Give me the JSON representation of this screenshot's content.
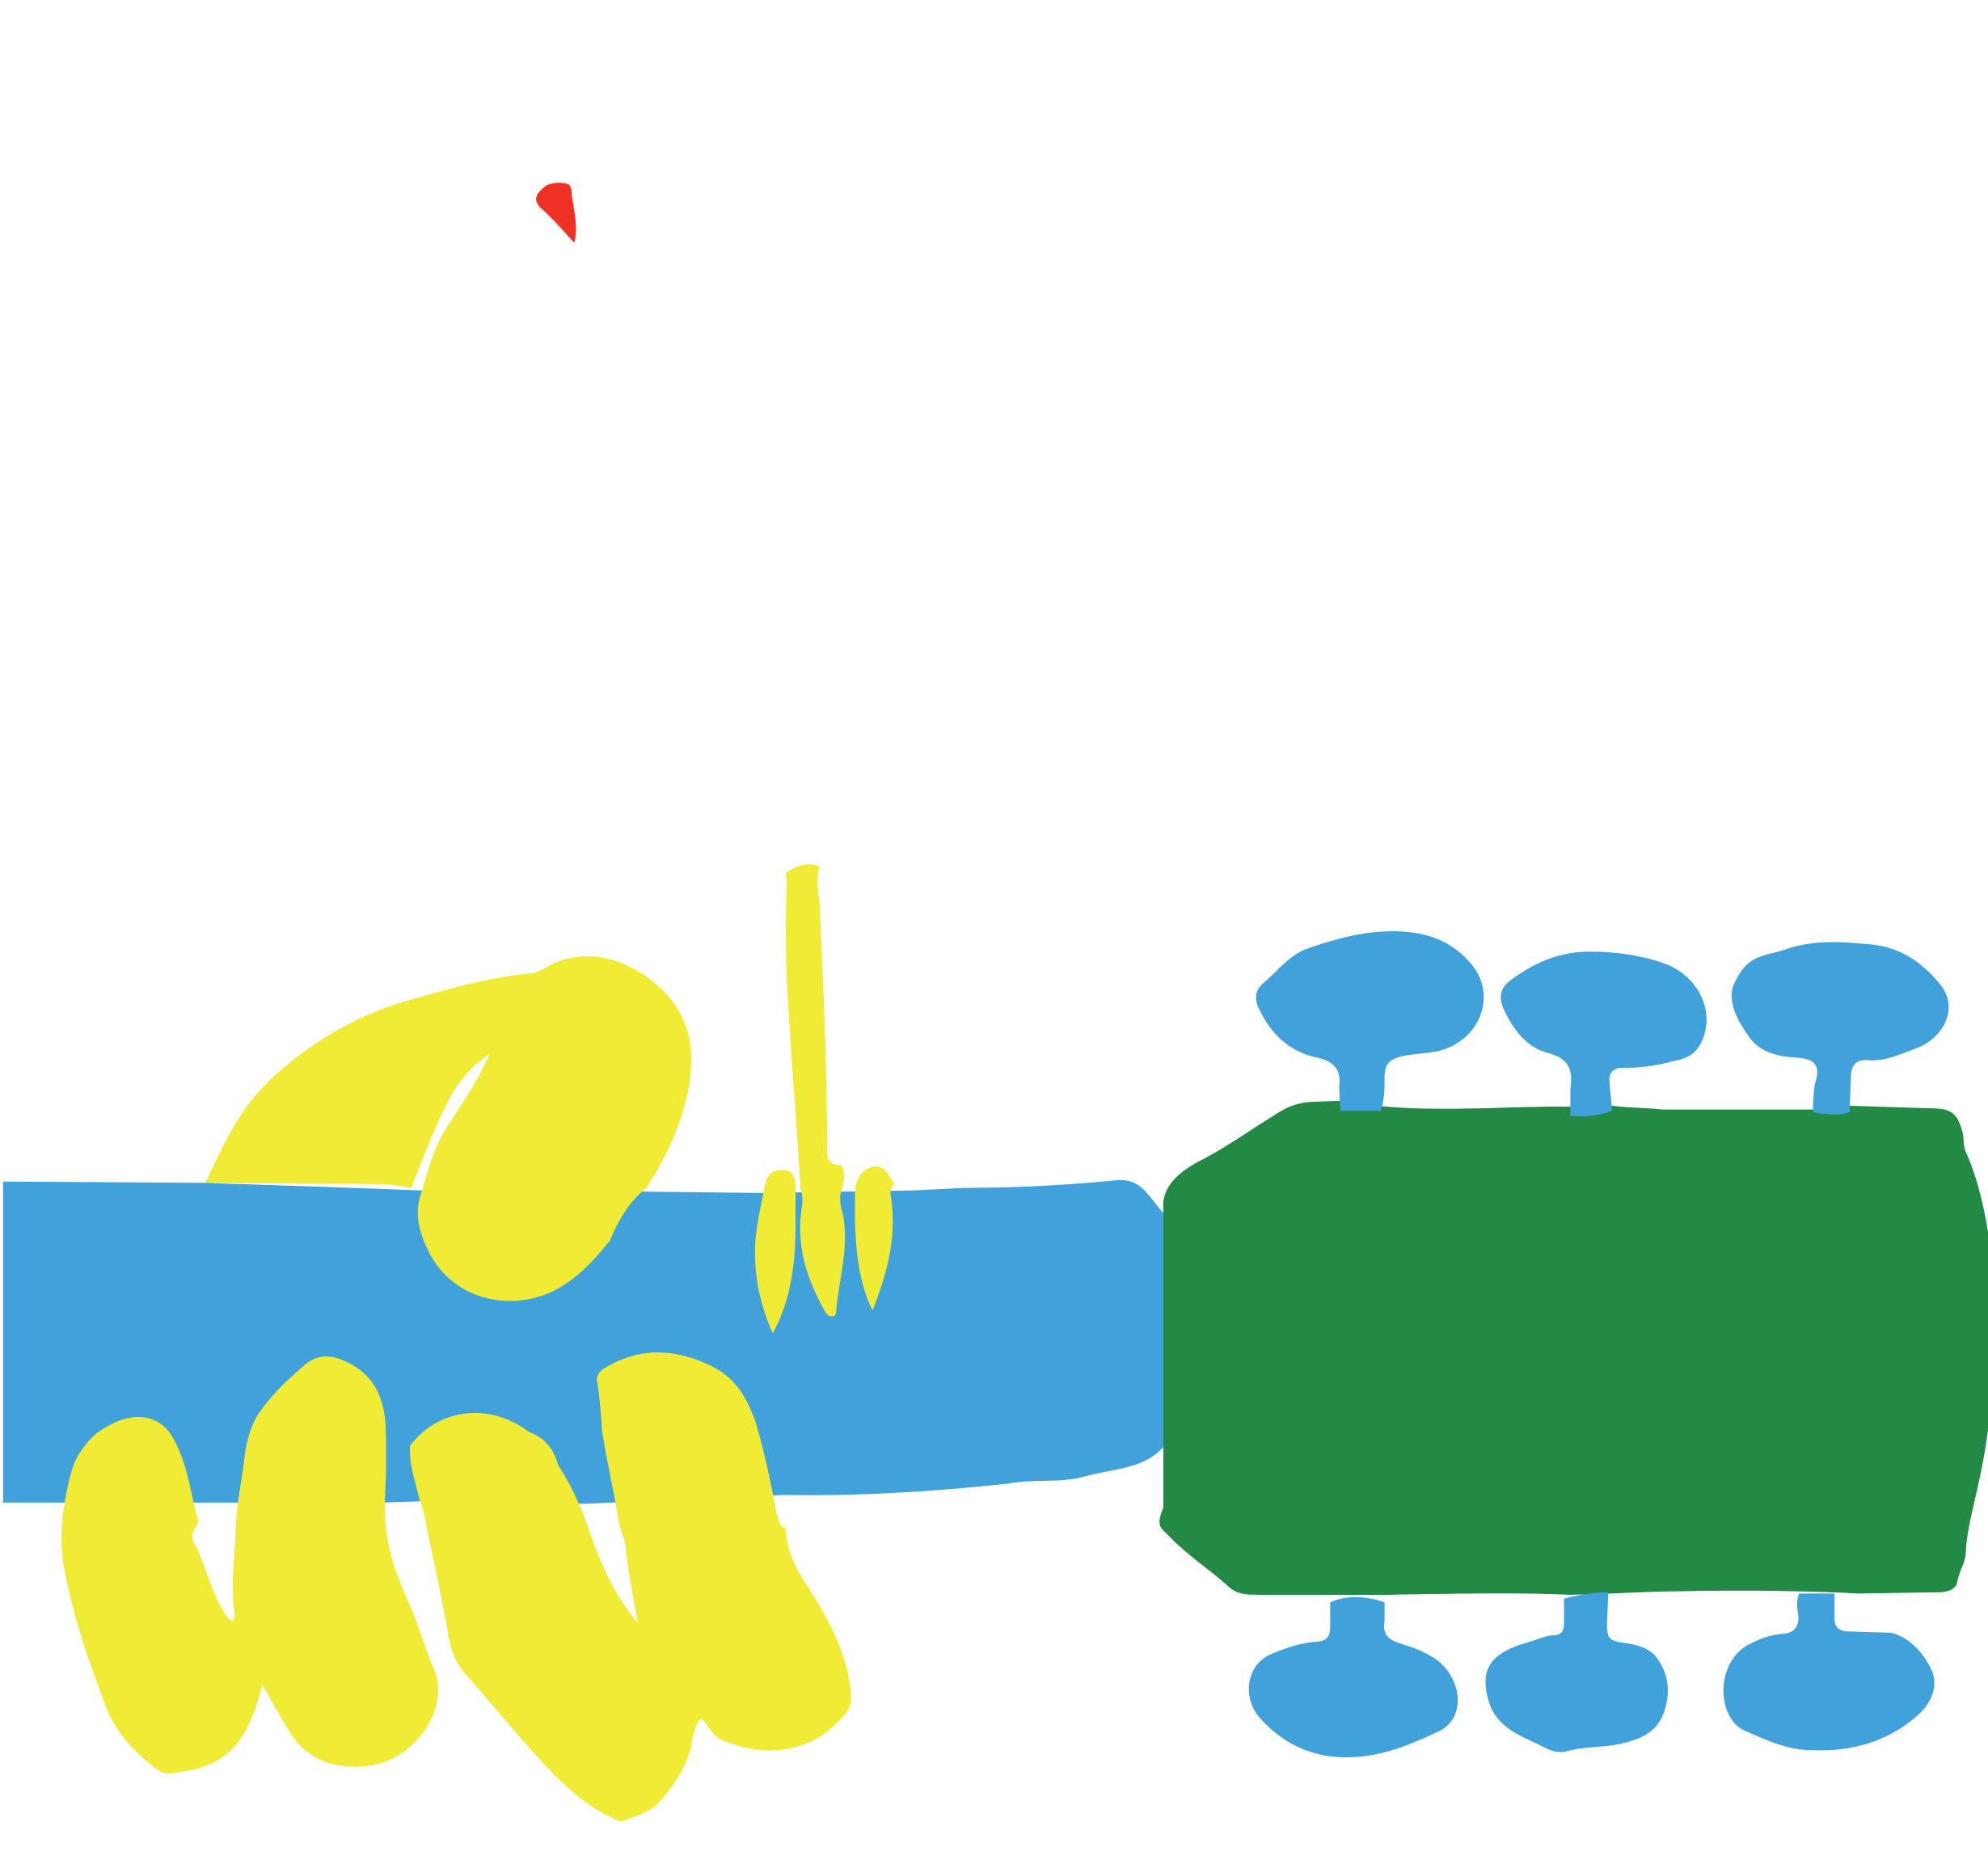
{
  "palette": {
    "background": "#ffffff",
    "neck_blue": "#41a2db",
    "headstock_green": "#228a45",
    "hand_yellow": "#f0eb35",
    "accent_red": "#ee3124"
  }
}
